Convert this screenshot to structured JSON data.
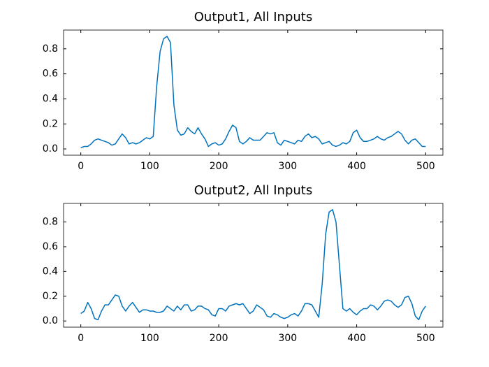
{
  "chart_data": [
    {
      "type": "line",
      "title": "Output1, All Inputs",
      "x": [
        0,
        5,
        10,
        15,
        20,
        25,
        30,
        35,
        40,
        45,
        50,
        55,
        60,
        65,
        70,
        75,
        80,
        85,
        90,
        95,
        100,
        105,
        110,
        115,
        120,
        125,
        130,
        135,
        140,
        145,
        150,
        155,
        160,
        165,
        170,
        175,
        180,
        185,
        190,
        195,
        200,
        205,
        210,
        215,
        220,
        225,
        230,
        235,
        240,
        245,
        250,
        255,
        260,
        265,
        270,
        275,
        280,
        285,
        290,
        295,
        300,
        305,
        310,
        315,
        320,
        325,
        330,
        335,
        340,
        345,
        350,
        355,
        360,
        365,
        370,
        375,
        380,
        385,
        390,
        395,
        400,
        405,
        410,
        415,
        420,
        425,
        430,
        435,
        440,
        445,
        450,
        455,
        460,
        465,
        470,
        475,
        480,
        485,
        490,
        495,
        500
      ],
      "series": [
        {
          "color": "#0072bd",
          "values": [
            0.01,
            0.02,
            0.02,
            0.04,
            0.07,
            0.08,
            0.07,
            0.06,
            0.05,
            0.03,
            0.04,
            0.08,
            0.12,
            0.09,
            0.04,
            0.05,
            0.04,
            0.05,
            0.07,
            0.09,
            0.08,
            0.1,
            0.5,
            0.78,
            0.88,
            0.9,
            0.85,
            0.35,
            0.15,
            0.11,
            0.12,
            0.17,
            0.14,
            0.12,
            0.17,
            0.12,
            0.08,
            0.02,
            0.04,
            0.05,
            0.03,
            0.04,
            0.08,
            0.14,
            0.19,
            0.17,
            0.06,
            0.04,
            0.06,
            0.09,
            0.07,
            0.07,
            0.07,
            0.1,
            0.13,
            0.12,
            0.13,
            0.05,
            0.03,
            0.07,
            0.06,
            0.05,
            0.04,
            0.07,
            0.06,
            0.1,
            0.12,
            0.09,
            0.1,
            0.08,
            0.04,
            0.05,
            0.06,
            0.03,
            0.02,
            0.03,
            0.05,
            0.04,
            0.06,
            0.13,
            0.15,
            0.09,
            0.06,
            0.06,
            0.07,
            0.08,
            0.1,
            0.08,
            0.07,
            0.09,
            0.1,
            0.12,
            0.14,
            0.12,
            0.07,
            0.04,
            0.07,
            0.08,
            0.05,
            0.02,
            0.02
          ]
        }
      ],
      "xlim": [
        -25,
        525
      ],
      "xticks": [
        0,
        100,
        200,
        300,
        400,
        500
      ],
      "ylim": [
        -0.05,
        0.95
      ],
      "yticks": [
        {
          "value": 0,
          "label": "0.0"
        },
        0.2,
        0.4,
        0.6,
        0.8
      ]
    },
    {
      "type": "line",
      "title": "Output2, All Inputs",
      "x": [
        0,
        5,
        10,
        15,
        20,
        25,
        30,
        35,
        40,
        45,
        50,
        55,
        60,
        65,
        70,
        75,
        80,
        85,
        90,
        95,
        100,
        105,
        110,
        115,
        120,
        125,
        130,
        135,
        140,
        145,
        150,
        155,
        160,
        165,
        170,
        175,
        180,
        185,
        190,
        195,
        200,
        205,
        210,
        215,
        220,
        225,
        230,
        235,
        240,
        245,
        250,
        255,
        260,
        265,
        270,
        275,
        280,
        285,
        290,
        295,
        300,
        305,
        310,
        315,
        320,
        325,
        330,
        335,
        340,
        345,
        350,
        355,
        360,
        365,
        370,
        375,
        380,
        385,
        390,
        395,
        400,
        405,
        410,
        415,
        420,
        425,
        430,
        435,
        440,
        445,
        450,
        455,
        460,
        465,
        470,
        475,
        480,
        485,
        490,
        495,
        500
      ],
      "series": [
        {
          "color": "#0072bd",
          "values": [
            0.06,
            0.08,
            0.15,
            0.1,
            0.02,
            0.01,
            0.08,
            0.13,
            0.13,
            0.17,
            0.21,
            0.2,
            0.12,
            0.08,
            0.12,
            0.15,
            0.11,
            0.07,
            0.09,
            0.09,
            0.08,
            0.08,
            0.07,
            0.07,
            0.08,
            0.12,
            0.1,
            0.08,
            0.12,
            0.09,
            0.13,
            0.13,
            0.08,
            0.09,
            0.12,
            0.12,
            0.1,
            0.09,
            0.05,
            0.04,
            0.1,
            0.1,
            0.08,
            0.12,
            0.13,
            0.14,
            0.13,
            0.14,
            0.1,
            0.06,
            0.08,
            0.13,
            0.11,
            0.09,
            0.04,
            0.03,
            0.06,
            0.05,
            0.03,
            0.02,
            0.03,
            0.05,
            0.06,
            0.04,
            0.08,
            0.14,
            0.14,
            0.13,
            0.08,
            0.03,
            0.3,
            0.7,
            0.88,
            0.9,
            0.8,
            0.45,
            0.1,
            0.08,
            0.1,
            0.07,
            0.05,
            0.08,
            0.1,
            0.1,
            0.13,
            0.12,
            0.09,
            0.12,
            0.16,
            0.17,
            0.16,
            0.13,
            0.11,
            0.13,
            0.19,
            0.2,
            0.14,
            0.04,
            0.01,
            0.08,
            0.12
          ]
        }
      ],
      "xlim": [
        -25,
        525
      ],
      "xticks": [
        0,
        100,
        200,
        300,
        400,
        500
      ],
      "ylim": [
        -0.05,
        0.95
      ],
      "yticks": [
        {
          "value": 0,
          "label": "0.0"
        },
        0.2,
        0.4,
        0.6,
        0.8
      ]
    }
  ]
}
